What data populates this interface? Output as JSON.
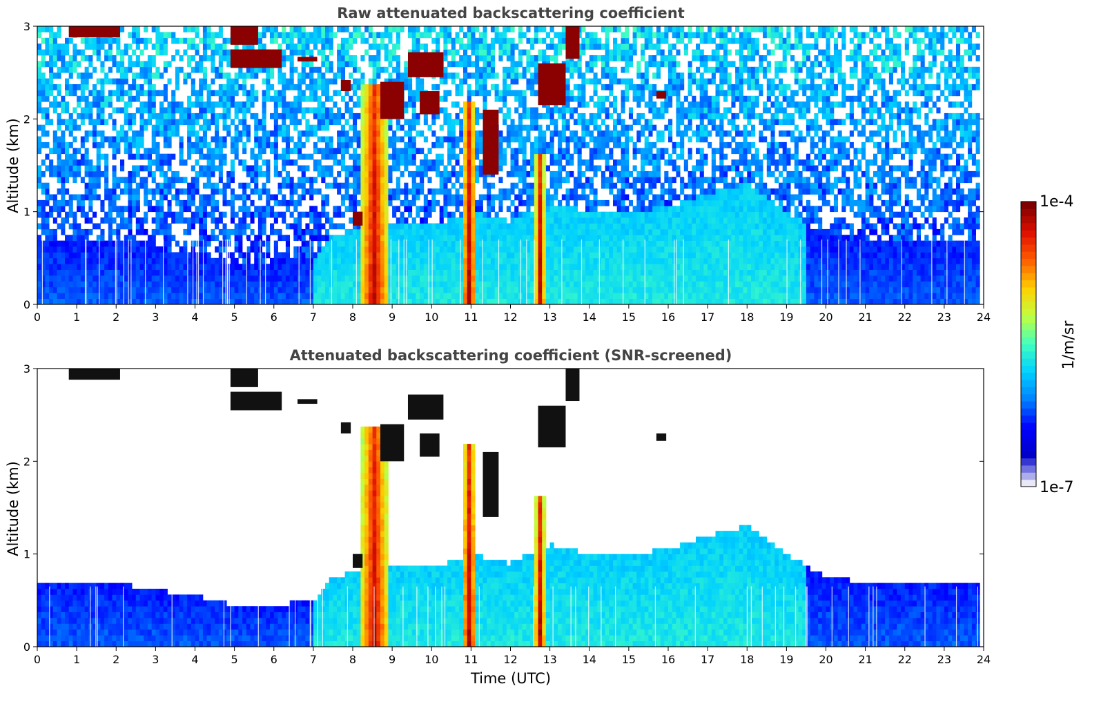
{
  "chart_data": [
    {
      "type": "heatmap",
      "title": "Raw attenuated backscattering coefficient",
      "xlabel": "",
      "ylabel": "Altitude (km)",
      "xlim": [
        0,
        24
      ],
      "ylim": [
        0,
        3
      ],
      "xticks": [
        "0",
        "1",
        "2",
        "3",
        "4",
        "5",
        "6",
        "7",
        "8",
        "9",
        "10",
        "11",
        "12",
        "13",
        "14",
        "15",
        "16",
        "17",
        "18",
        "19",
        "20",
        "21",
        "22",
        "23",
        "24"
      ],
      "yticks": [
        "0",
        "1",
        "2",
        "3"
      ],
      "x_end": 23.85,
      "boundary_layer_top_km": {
        "x": [
          0,
          2,
          4,
          5,
          6,
          7,
          7.5,
          8,
          8.5,
          9,
          10,
          11,
          12,
          13,
          14,
          15,
          16,
          17,
          18,
          19,
          20,
          21,
          22,
          23,
          23.85
        ],
        "top": [
          0.7,
          0.68,
          0.55,
          0.45,
          0.45,
          0.5,
          0.75,
          0.8,
          0.9,
          0.9,
          0.85,
          1.0,
          0.9,
          1.1,
          1.0,
          1.0,
          1.05,
          1.2,
          1.3,
          1.0,
          0.75,
          0.7,
          0.7,
          0.7,
          0.7
        ]
      },
      "vertical_plumes": [
        {
          "x": 8.55,
          "width": 0.7,
          "top_km": 2.4
        },
        {
          "x": 10.95,
          "width": 0.35,
          "top_km": 2.2
        },
        {
          "x": 12.75,
          "width": 0.25,
          "top_km": 1.6
        }
      ],
      "cloud_patches": [
        {
          "x0": 0.8,
          "x1": 2.1,
          "y0": 2.88,
          "y1": 3.0
        },
        {
          "x0": 4.9,
          "x1": 5.6,
          "y0": 2.8,
          "y1": 3.0
        },
        {
          "x0": 4.9,
          "x1": 6.2,
          "y0": 2.55,
          "y1": 2.75
        },
        {
          "x0": 6.6,
          "x1": 7.1,
          "y0": 2.62,
          "y1": 2.67
        },
        {
          "x0": 7.7,
          "x1": 7.95,
          "y0": 2.3,
          "y1": 2.42
        },
        {
          "x0": 8.0,
          "x1": 8.25,
          "y0": 0.85,
          "y1": 1.0
        },
        {
          "x0": 8.7,
          "x1": 9.3,
          "y0": 2.0,
          "y1": 2.4
        },
        {
          "x0": 9.4,
          "x1": 10.3,
          "y0": 2.45,
          "y1": 2.72
        },
        {
          "x0": 9.7,
          "x1": 10.2,
          "y0": 2.05,
          "y1": 2.3
        },
        {
          "x0": 11.3,
          "x1": 11.7,
          "y0": 1.4,
          "y1": 2.1
        },
        {
          "x0": 12.7,
          "x1": 13.4,
          "y0": 2.15,
          "y1": 2.6
        },
        {
          "x0": 13.4,
          "x1": 13.75,
          "y0": 2.65,
          "y1": 3.0
        },
        {
          "x0": 15.7,
          "x1": 15.95,
          "y0": 2.22,
          "y1": 2.3
        }
      ]
    },
    {
      "type": "heatmap",
      "title": "Attenuated backscattering coefficient (SNR-screened)",
      "xlabel": "Time (UTC)",
      "ylabel": "Altitude (km)",
      "xlim": [
        0,
        24
      ],
      "ylim": [
        0,
        3
      ],
      "xticks": [
        "0",
        "1",
        "2",
        "3",
        "4",
        "5",
        "6",
        "7",
        "8",
        "9",
        "10",
        "11",
        "12",
        "13",
        "14",
        "15",
        "16",
        "17",
        "18",
        "19",
        "20",
        "21",
        "22",
        "23",
        "24"
      ],
      "yticks": [
        "0",
        "1",
        "2",
        "3"
      ]
    }
  ],
  "colorbar": {
    "label": "1/m/sr",
    "max_label": "1e-4",
    "min_label": "1e-7",
    "scale": "log",
    "colormap": "jet",
    "colors": [
      "#e8e8f8",
      "#0000c8",
      "#0000ff",
      "#0080ff",
      "#00d0ff",
      "#40ffc0",
      "#c0ff40",
      "#ffd000",
      "#ff6000",
      "#e01000",
      "#800000"
    ]
  }
}
